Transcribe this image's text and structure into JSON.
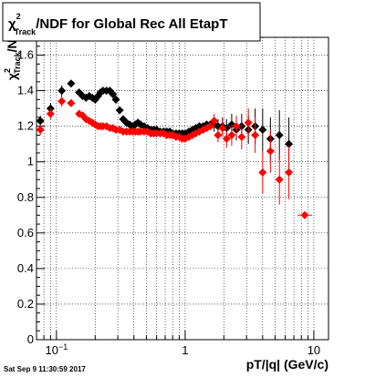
{
  "footer": {
    "timestamp": "Sat Sep  9 11:30:59 2017"
  },
  "chart_data": {
    "type": "scatter",
    "title_parts": {
      "chi": "χ",
      "sup": "2",
      "sub": "Track",
      "rest": "/NDF for Global Rec All EtapT"
    },
    "ylabel_parts": {
      "chi": "χ",
      "sup": "2",
      "sub": "Track",
      "rest": "/NDF"
    },
    "xlabel": "pT/|q| (GeV/c)",
    "x_scale": "log",
    "xlim": [
      0.07,
      13
    ],
    "ylim": [
      0,
      1.7
    ],
    "grid": true,
    "legend": "none",
    "x_tick_labels": [
      {
        "value": 0.1,
        "label": "10",
        "exp": "−1"
      },
      {
        "value": 1,
        "label": "1",
        "exp": ""
      },
      {
        "value": 10,
        "label": "10",
        "exp": ""
      }
    ],
    "y_ticks": [
      {
        "value": 0,
        "label": "0"
      },
      {
        "value": 0.2,
        "label": "0.2"
      },
      {
        "value": 0.4,
        "label": "0.4"
      },
      {
        "value": 0.6,
        "label": "0.6"
      },
      {
        "value": 0.8,
        "label": "0.8"
      },
      {
        "value": 1.0,
        "label": "1"
      },
      {
        "value": 1.2,
        "label": "1.2"
      },
      {
        "value": 1.4,
        "label": "1.4"
      },
      {
        "value": 1.6,
        "label": "1.6"
      }
    ],
    "series": [
      {
        "color": "#000000",
        "points": [
          {
            "x": 0.075,
            "y": 1.23,
            "err": 0.03
          },
          {
            "x": 0.09,
            "y": 1.3,
            "err": 0.03
          },
          {
            "x": 0.11,
            "y": 1.4,
            "err": 0.03
          },
          {
            "x": 0.13,
            "y": 1.44,
            "err": 0.02
          },
          {
            "x": 0.15,
            "y": 1.39
          },
          {
            "x": 0.16,
            "y": 1.37
          },
          {
            "x": 0.17,
            "y": 1.36
          },
          {
            "x": 0.18,
            "y": 1.37
          },
          {
            "x": 0.19,
            "y": 1.36
          },
          {
            "x": 0.2,
            "y": 1.35
          },
          {
            "x": 0.21,
            "y": 1.37
          },
          {
            "x": 0.22,
            "y": 1.39
          },
          {
            "x": 0.23,
            "y": 1.4
          },
          {
            "x": 0.245,
            "y": 1.4
          },
          {
            "x": 0.26,
            "y": 1.4
          },
          {
            "x": 0.275,
            "y": 1.38
          },
          {
            "x": 0.29,
            "y": 1.35
          },
          {
            "x": 0.31,
            "y": 1.29
          },
          {
            "x": 0.33,
            "y": 1.24
          },
          {
            "x": 0.35,
            "y": 1.22
          },
          {
            "x": 0.37,
            "y": 1.21
          },
          {
            "x": 0.39,
            "y": 1.2
          },
          {
            "x": 0.41,
            "y": 1.21
          },
          {
            "x": 0.43,
            "y": 1.22
          },
          {
            "x": 0.45,
            "y": 1.21
          },
          {
            "x": 0.48,
            "y": 1.2
          },
          {
            "x": 0.51,
            "y": 1.19
          },
          {
            "x": 0.54,
            "y": 1.18
          },
          {
            "x": 0.57,
            "y": 1.18
          },
          {
            "x": 0.6,
            "y": 1.18
          },
          {
            "x": 0.64,
            "y": 1.17
          },
          {
            "x": 0.68,
            "y": 1.17
          },
          {
            "x": 0.72,
            "y": 1.17
          },
          {
            "x": 0.76,
            "y": 1.17
          },
          {
            "x": 0.8,
            "y": 1.16
          },
          {
            "x": 0.85,
            "y": 1.16
          },
          {
            "x": 0.9,
            "y": 1.16
          },
          {
            "x": 0.95,
            "y": 1.16
          },
          {
            "x": 1.0,
            "y": 1.16
          },
          {
            "x": 1.07,
            "y": 1.17
          },
          {
            "x": 1.14,
            "y": 1.18
          },
          {
            "x": 1.21,
            "y": 1.19
          },
          {
            "x": 1.29,
            "y": 1.2
          },
          {
            "x": 1.38,
            "y": 1.2
          },
          {
            "x": 1.47,
            "y": 1.21
          },
          {
            "x": 1.57,
            "y": 1.21
          },
          {
            "x": 1.68,
            "y": 1.21,
            "err": 0.04
          },
          {
            "x": 1.8,
            "y": 1.2,
            "err": 0.04
          },
          {
            "x": 1.95,
            "y": 1.2,
            "err": 0.05
          },
          {
            "x": 2.1,
            "y": 1.19,
            "err": 0.05
          },
          {
            "x": 2.3,
            "y": 1.21,
            "err": 0.06
          },
          {
            "x": 2.5,
            "y": 1.18,
            "err": 0.06
          },
          {
            "x": 2.75,
            "y": 1.2,
            "err": 0.07
          },
          {
            "x": 3.1,
            "y": 1.18,
            "err": 0.08
          },
          {
            "x": 3.5,
            "y": 1.2,
            "err": 0.1
          },
          {
            "x": 4.0,
            "y": 1.18,
            "err": 0.12
          },
          {
            "x": 4.6,
            "y": 1.13,
            "err": 0.12
          },
          {
            "x": 5.4,
            "y": 1.15,
            "err": 0.14
          },
          {
            "x": 6.4,
            "y": 1.1,
            "err": 0.15
          }
        ]
      },
      {
        "color": "#ff0000",
        "points": [
          {
            "x": 0.075,
            "y": 1.18,
            "err": 0.03
          },
          {
            "x": 0.09,
            "y": 1.27,
            "err": 0.03
          },
          {
            "x": 0.11,
            "y": 1.34,
            "err": 0.03
          },
          {
            "x": 0.13,
            "y": 1.33,
            "err": 0.02
          },
          {
            "x": 0.15,
            "y": 1.27
          },
          {
            "x": 0.16,
            "y": 1.26
          },
          {
            "x": 0.17,
            "y": 1.24
          },
          {
            "x": 0.18,
            "y": 1.23
          },
          {
            "x": 0.19,
            "y": 1.22
          },
          {
            "x": 0.2,
            "y": 1.21
          },
          {
            "x": 0.21,
            "y": 1.2
          },
          {
            "x": 0.22,
            "y": 1.2
          },
          {
            "x": 0.23,
            "y": 1.2
          },
          {
            "x": 0.245,
            "y": 1.2
          },
          {
            "x": 0.26,
            "y": 1.19
          },
          {
            "x": 0.275,
            "y": 1.19
          },
          {
            "x": 0.29,
            "y": 1.18
          },
          {
            "x": 0.31,
            "y": 1.18
          },
          {
            "x": 0.33,
            "y": 1.17
          },
          {
            "x": 0.35,
            "y": 1.17
          },
          {
            "x": 0.37,
            "y": 1.17
          },
          {
            "x": 0.39,
            "y": 1.17
          },
          {
            "x": 0.41,
            "y": 1.17
          },
          {
            "x": 0.43,
            "y": 1.17
          },
          {
            "x": 0.45,
            "y": 1.17
          },
          {
            "x": 0.48,
            "y": 1.17
          },
          {
            "x": 0.51,
            "y": 1.17
          },
          {
            "x": 0.54,
            "y": 1.16
          },
          {
            "x": 0.57,
            "y": 1.16
          },
          {
            "x": 0.6,
            "y": 1.16
          },
          {
            "x": 0.64,
            "y": 1.16
          },
          {
            "x": 0.68,
            "y": 1.16
          },
          {
            "x": 0.72,
            "y": 1.15
          },
          {
            "x": 0.76,
            "y": 1.15
          },
          {
            "x": 0.8,
            "y": 1.15
          },
          {
            "x": 0.85,
            "y": 1.14
          },
          {
            "x": 0.9,
            "y": 1.14
          },
          {
            "x": 0.95,
            "y": 1.13
          },
          {
            "x": 1.0,
            "y": 1.13
          },
          {
            "x": 1.07,
            "y": 1.14
          },
          {
            "x": 1.14,
            "y": 1.15
          },
          {
            "x": 1.21,
            "y": 1.16
          },
          {
            "x": 1.29,
            "y": 1.17
          },
          {
            "x": 1.38,
            "y": 1.18
          },
          {
            "x": 1.47,
            "y": 1.19
          },
          {
            "x": 1.57,
            "y": 1.2
          },
          {
            "x": 1.68,
            "y": 1.23,
            "err": 0.04
          },
          {
            "x": 1.8,
            "y": 1.15,
            "err": 0.04
          },
          {
            "x": 1.95,
            "y": 1.19,
            "err": 0.05
          },
          {
            "x": 2.1,
            "y": 1.13,
            "err": 0.05
          },
          {
            "x": 2.3,
            "y": 1.15,
            "err": 0.06
          },
          {
            "x": 2.5,
            "y": 1.2,
            "err": 0.06
          },
          {
            "x": 2.75,
            "y": 1.14,
            "err": 0.07
          },
          {
            "x": 3.1,
            "y": 1.22,
            "err": 0.08
          },
          {
            "x": 3.5,
            "y": 1.15,
            "err": 0.1
          },
          {
            "x": 4.0,
            "y": 0.94,
            "err": 0.12
          },
          {
            "x": 4.6,
            "y": 1.06,
            "err": 0.12
          },
          {
            "x": 5.4,
            "y": 0.9,
            "err": 0.14
          },
          {
            "x": 6.4,
            "y": 0.94,
            "err": 0.15
          },
          {
            "x": 8.5,
            "y": 0.7,
            "err": 0.0
          }
        ]
      }
    ]
  }
}
